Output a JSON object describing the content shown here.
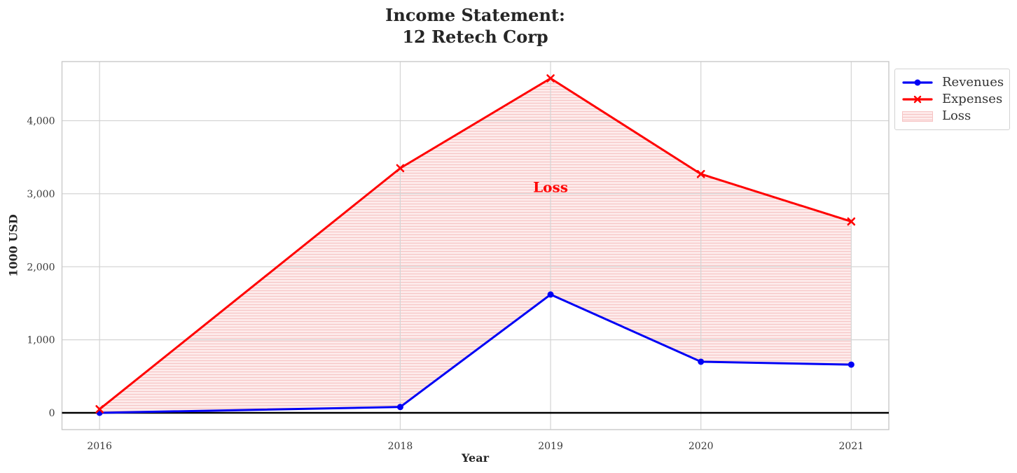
{
  "title": {
    "line1": "Income Statement:",
    "line2": "12 Retech Corp"
  },
  "chart_data": {
    "type": "line",
    "title": "Income Statement:\n12 Retech Corp",
    "xlabel": "Year",
    "ylabel": "1000 USD",
    "x": [
      2016,
      2018,
      2019,
      2020,
      2021
    ],
    "x_tick_labels": [
      "2016",
      "2018",
      "2019",
      "2020",
      "2021"
    ],
    "y_ticks": [
      0,
      1000,
      2000,
      3000,
      4000
    ],
    "y_tick_labels": [
      "0",
      "1,000",
      "2,000",
      "3,000",
      "4,000"
    ],
    "xlim": [
      2015.75,
      2021.25
    ],
    "ylim": [
      -230,
      4810
    ],
    "grid": true,
    "series": [
      {
        "name": "Revenues",
        "color": "#0000f5",
        "marker": "circle",
        "values": [
          0,
          80,
          1620,
          700,
          660
        ]
      },
      {
        "name": "Expenses",
        "color": "#ff0000",
        "marker": "x",
        "values": [
          50,
          3350,
          4580,
          3270,
          2620
        ]
      }
    ],
    "loss_area": {
      "label": "Loss",
      "between": [
        "Revenues",
        "Expenses"
      ],
      "face_color": "#fdeaea",
      "hatch_color": "#f6c3c3",
      "hatch": "horizontal-lines"
    },
    "annotation": {
      "text": "Loss",
      "x": 2019,
      "y": 3090,
      "color": "#ff0000"
    },
    "zero_line": {
      "y": 0,
      "color": "#000000"
    },
    "legend": {
      "position": "outside upper right",
      "items": [
        "Revenues",
        "Expenses",
        "Loss"
      ]
    },
    "axis_colors": {
      "grid": "#d4d4d4",
      "spine": "#c9c9c9",
      "tick_text": "#3a3a3a"
    }
  }
}
